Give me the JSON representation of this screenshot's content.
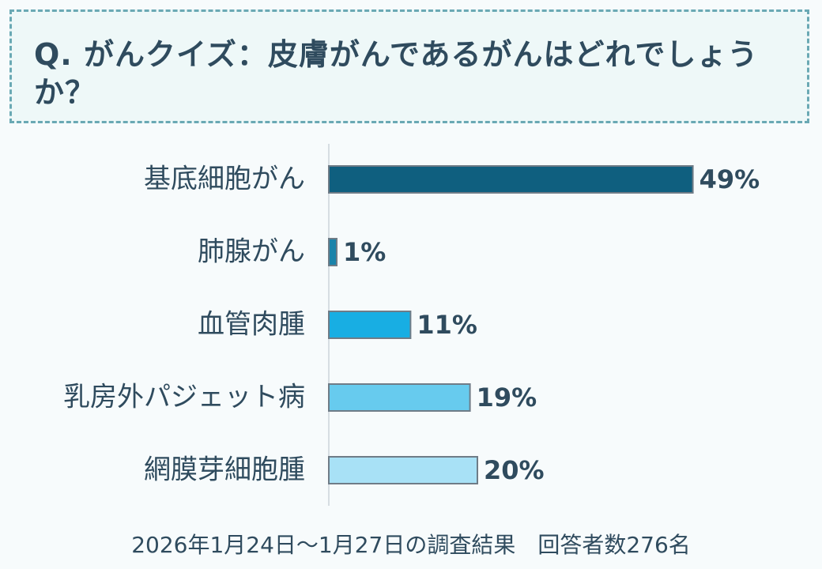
{
  "question": {
    "text": "Q. がんクイズ：皮膚がんであるがんはどれでしょうか？"
  },
  "chart_data": {
    "type": "bar",
    "orientation": "horizontal",
    "categories": [
      "基底細胞がん",
      "肺腺がん",
      "血管肉腫",
      "乳房外パジェット病",
      "網膜芽細胞腫"
    ],
    "values": [
      49,
      1,
      11,
      19,
      20
    ],
    "value_labels": [
      "49%",
      "1%",
      "11%",
      "19%",
      "20%"
    ],
    "unit": "%",
    "xlim": [
      0,
      100
    ],
    "colors": [
      "#0f5f7f",
      "#1a83aa",
      "#18aee3",
      "#67cbee",
      "#a8e1f6"
    ],
    "bar_border_color": "#6f7c87",
    "axis_line_color": "#d6dde2",
    "grid": false,
    "legend": "none"
  },
  "footer": {
    "text": "2026年1月24日～1月27日の調査結果　回答者数276名"
  }
}
